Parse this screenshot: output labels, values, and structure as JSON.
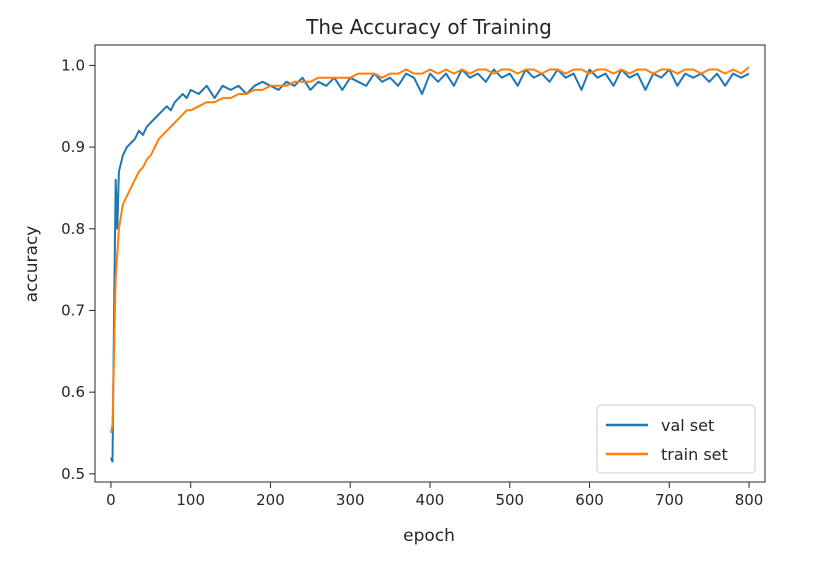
{
  "chart_data": {
    "type": "line",
    "title": "The Accuracy of Training",
    "xlabel": "epoch",
    "ylabel": "accuracy",
    "xlim": [
      -20,
      820
    ],
    "ylim": [
      0.49,
      1.025
    ],
    "xticks": [
      0,
      100,
      200,
      300,
      400,
      500,
      600,
      700,
      800
    ],
    "yticks": [
      0.5,
      0.6,
      0.7,
      0.8,
      0.9,
      1.0
    ],
    "xtick_labels": [
      "0",
      "100",
      "200",
      "300",
      "400",
      "500",
      "600",
      "700",
      "800"
    ],
    "ytick_labels": [
      "0.5",
      "0.6",
      "0.7",
      "0.8",
      "0.9",
      "1.0"
    ],
    "grid": false,
    "legend_position": "lower-right",
    "colors": {
      "val set": "#1f77b4",
      "train set": "#ff7f0e"
    },
    "series": [
      {
        "name": "val set",
        "color": "#1f77b4",
        "x": [
          0,
          2,
          4,
          6,
          8,
          10,
          15,
          20,
          25,
          30,
          35,
          40,
          45,
          50,
          55,
          60,
          65,
          70,
          75,
          80,
          85,
          90,
          95,
          100,
          110,
          120,
          130,
          140,
          150,
          160,
          170,
          180,
          190,
          200,
          210,
          220,
          230,
          240,
          250,
          260,
          270,
          280,
          290,
          300,
          310,
          320,
          330,
          340,
          350,
          360,
          370,
          380,
          390,
          400,
          410,
          420,
          430,
          440,
          450,
          460,
          470,
          480,
          490,
          500,
          510,
          520,
          530,
          540,
          550,
          560,
          570,
          580,
          590,
          600,
          610,
          620,
          630,
          640,
          650,
          660,
          670,
          680,
          690,
          700,
          710,
          720,
          730,
          740,
          750,
          760,
          770,
          780,
          790,
          800
        ],
        "y": [
          0.52,
          0.515,
          0.7,
          0.86,
          0.8,
          0.87,
          0.89,
          0.9,
          0.905,
          0.91,
          0.92,
          0.915,
          0.925,
          0.93,
          0.935,
          0.94,
          0.945,
          0.95,
          0.945,
          0.955,
          0.96,
          0.965,
          0.96,
          0.97,
          0.965,
          0.975,
          0.96,
          0.975,
          0.97,
          0.975,
          0.965,
          0.975,
          0.98,
          0.975,
          0.97,
          0.98,
          0.975,
          0.985,
          0.97,
          0.98,
          0.975,
          0.985,
          0.97,
          0.985,
          0.98,
          0.975,
          0.99,
          0.98,
          0.985,
          0.975,
          0.99,
          0.985,
          0.965,
          0.99,
          0.98,
          0.99,
          0.975,
          0.995,
          0.985,
          0.99,
          0.98,
          0.995,
          0.985,
          0.99,
          0.975,
          0.995,
          0.985,
          0.99,
          0.98,
          0.995,
          0.985,
          0.99,
          0.97,
          0.995,
          0.985,
          0.99,
          0.975,
          0.995,
          0.985,
          0.99,
          0.97,
          0.99,
          0.985,
          0.995,
          0.975,
          0.99,
          0.985,
          0.99,
          0.98,
          0.99,
          0.975,
          0.99,
          0.985,
          0.99
        ]
      },
      {
        "name": "train set",
        "color": "#ff7f0e",
        "x": [
          0,
          2,
          4,
          6,
          8,
          10,
          15,
          20,
          25,
          30,
          35,
          40,
          45,
          50,
          55,
          60,
          65,
          70,
          75,
          80,
          85,
          90,
          95,
          100,
          110,
          120,
          130,
          140,
          150,
          160,
          170,
          180,
          190,
          200,
          210,
          220,
          230,
          240,
          250,
          260,
          270,
          280,
          290,
          300,
          310,
          320,
          330,
          340,
          350,
          360,
          370,
          380,
          390,
          400,
          410,
          420,
          430,
          440,
          450,
          460,
          470,
          480,
          490,
          500,
          510,
          520,
          530,
          540,
          550,
          560,
          570,
          580,
          590,
          600,
          610,
          620,
          630,
          640,
          650,
          660,
          670,
          680,
          690,
          700,
          710,
          720,
          730,
          740,
          750,
          760,
          770,
          780,
          790,
          800
        ],
        "y": [
          0.55,
          0.56,
          0.65,
          0.74,
          0.77,
          0.8,
          0.83,
          0.84,
          0.85,
          0.86,
          0.87,
          0.875,
          0.885,
          0.89,
          0.9,
          0.91,
          0.915,
          0.92,
          0.925,
          0.93,
          0.935,
          0.94,
          0.945,
          0.945,
          0.95,
          0.955,
          0.955,
          0.96,
          0.96,
          0.965,
          0.965,
          0.97,
          0.97,
          0.975,
          0.975,
          0.975,
          0.98,
          0.98,
          0.98,
          0.985,
          0.985,
          0.985,
          0.985,
          0.985,
          0.99,
          0.99,
          0.99,
          0.985,
          0.99,
          0.99,
          0.995,
          0.99,
          0.99,
          0.995,
          0.99,
          0.995,
          0.99,
          0.995,
          0.99,
          0.995,
          0.995,
          0.99,
          0.995,
          0.995,
          0.99,
          0.995,
          0.995,
          0.99,
          0.995,
          0.995,
          0.99,
          0.995,
          0.995,
          0.99,
          0.995,
          0.995,
          0.99,
          0.995,
          0.99,
          0.995,
          0.995,
          0.99,
          0.995,
          0.995,
          0.99,
          0.995,
          0.995,
          0.99,
          0.995,
          0.995,
          0.99,
          0.995,
          0.99,
          0.998
        ]
      }
    ]
  }
}
